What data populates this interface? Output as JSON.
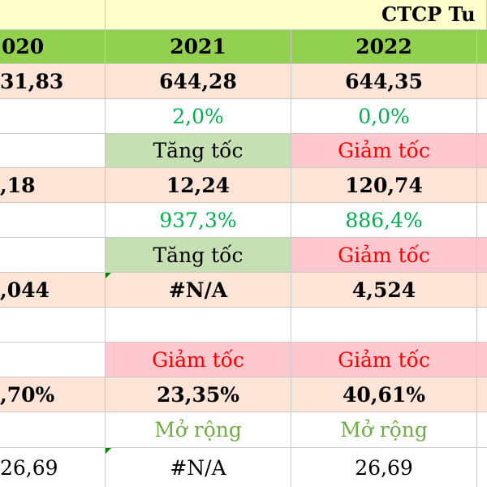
{
  "title": "CTCP Tu",
  "years": {
    "c0": "020",
    "c1": "2021",
    "c2": "2022"
  },
  "rows": [
    {
      "c0": "31,83",
      "c1": "644,28",
      "c2": "644,35"
    },
    {
      "c0": "",
      "c1": "2,0%",
      "c2": "0,0%"
    },
    {
      "c0": "",
      "c1": "Tăng tốc",
      "c2": "Giảm tốc"
    },
    {
      "c0": ",18",
      "c1": "12,24",
      "c2": "120,74"
    },
    {
      "c0": "",
      "c1": "937,3%",
      "c2": "886,4%"
    },
    {
      "c0": "",
      "c1": "Tăng tốc",
      "c2": "Giảm tốc"
    },
    {
      "c0": ",044",
      "c1": "#N/A",
      "c2": "4,524"
    },
    {
      "c0": "",
      "c1": "",
      "c2": ""
    },
    {
      "c0": "",
      "c1": "Giảm tốc",
      "c2": "Giảm tốc"
    },
    {
      "c0": ",70%",
      "c1": "23,35%",
      "c2": "40,61%"
    },
    {
      "c0": "",
      "c1": "Mở rộng",
      "c2": "Mở rộng"
    },
    {
      "c0": "26,69",
      "c1": "#N/A",
      "c2": "26,69"
    }
  ]
}
